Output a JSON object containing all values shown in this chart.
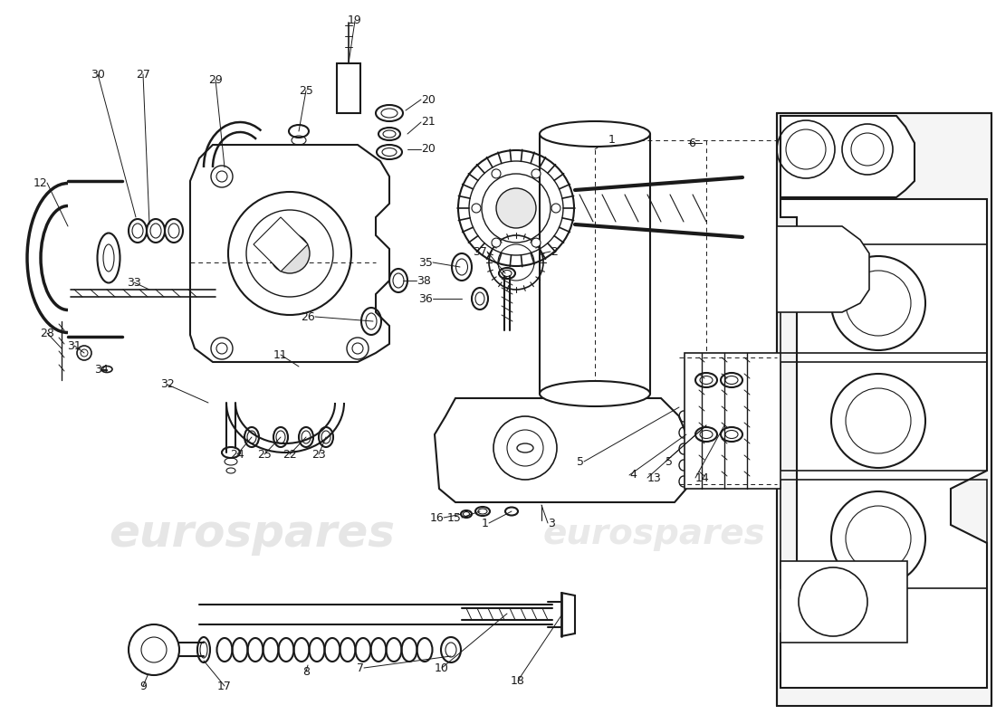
{
  "background_color": "#ffffff",
  "line_color": "#1a1a1a",
  "watermark_color_1": "#c8c8c8",
  "watermark_color_2": "#c8c8c8",
  "watermark_text": "eurospares",
  "fig_width": 11.0,
  "fig_height": 8.0,
  "dpi": 100,
  "image_xlim": [
    0,
    1100
  ],
  "image_ylim": [
    800,
    0
  ]
}
